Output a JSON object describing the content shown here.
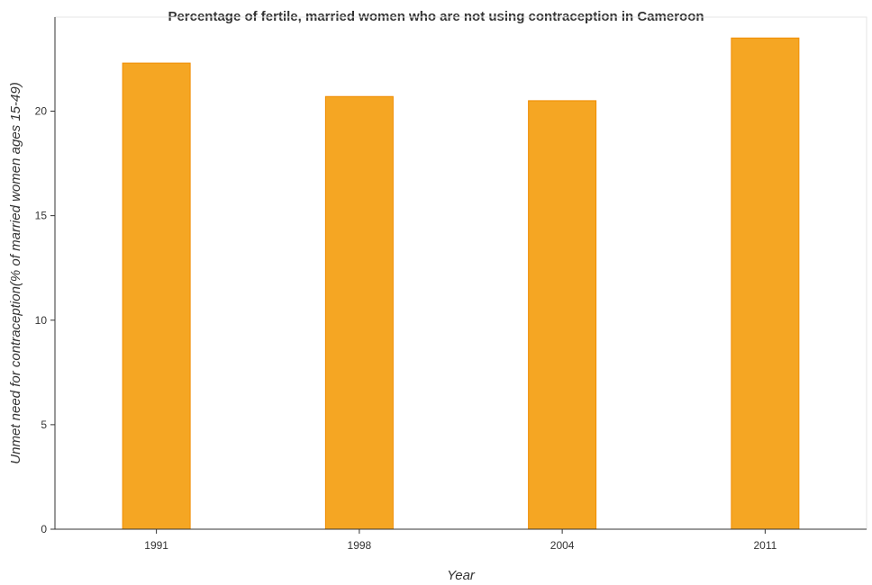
{
  "chart_data": {
    "type": "bar",
    "title": "Percentage of fertile, married women who are not using contraception in Cameroon",
    "xlabel": "Year",
    "ylabel": "Unmet need for contraception(% of married women ages 15-49)",
    "categories": [
      "1991",
      "1998",
      "2004",
      "2011"
    ],
    "values": [
      22.3,
      20.7,
      20.5,
      23.5
    ],
    "ylim": [
      0,
      24.5
    ],
    "yticks": [
      0,
      5,
      10,
      15,
      20
    ],
    "grid": false,
    "legend": "none",
    "bar_color": "#f5a623",
    "bar_edge_color": "#f08c00"
  }
}
